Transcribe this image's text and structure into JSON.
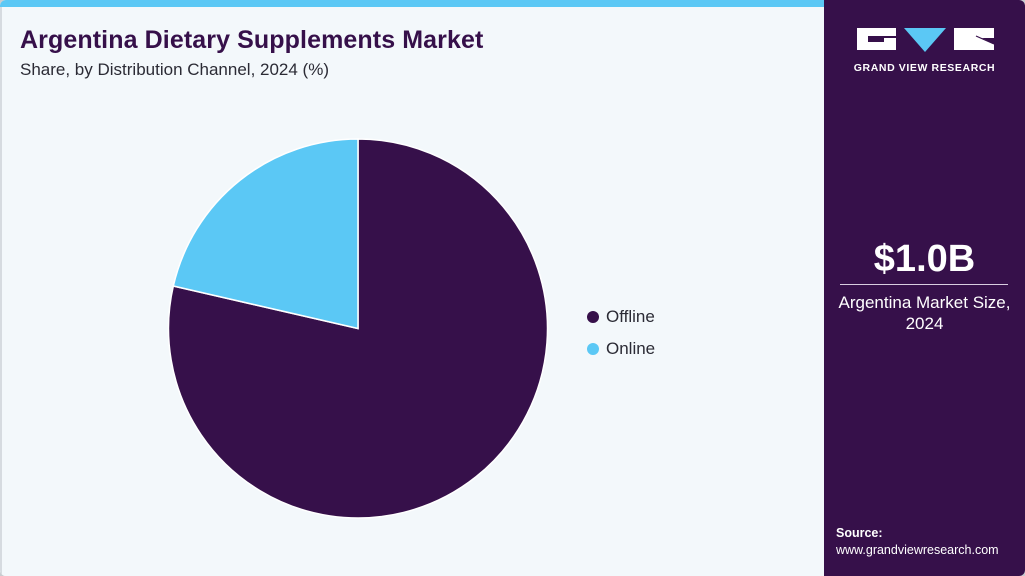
{
  "header": {
    "title": "Argentina Dietary Supplements Market",
    "subtitle": "Share, by Distribution Channel, 2024 (%)"
  },
  "colors": {
    "offline": "#36104a",
    "online": "#5bc8f5",
    "accent_bar": "#5bc8f5",
    "sidebar_bg": "#36104a",
    "background": "#f3f8fb"
  },
  "legend": {
    "items": [
      {
        "label": "Offline",
        "color": "#36104a"
      },
      {
        "label": "Online",
        "color": "#5bc8f5"
      }
    ]
  },
  "sidebar": {
    "logo_text": "GRAND VIEW RESEARCH",
    "kpi_value": "$1.0B",
    "kpi_label_line1": "Argentina Market Size,",
    "kpi_label_line2": "2024",
    "source_label": "Source:",
    "source_url": "www.grandviewresearch.com"
  },
  "chart_data": {
    "type": "pie",
    "title": "Argentina Dietary Supplements Market",
    "subtitle": "Share, by Distribution Channel, 2024 (%)",
    "categories": [
      "Offline",
      "Online"
    ],
    "values": [
      78.6,
      21.4
    ],
    "colors": [
      "#36104a",
      "#5bc8f5"
    ],
    "start_angle": "12 o'clock, clockwise (Offline first)",
    "legend_position": "right",
    "data_labels": false
  }
}
